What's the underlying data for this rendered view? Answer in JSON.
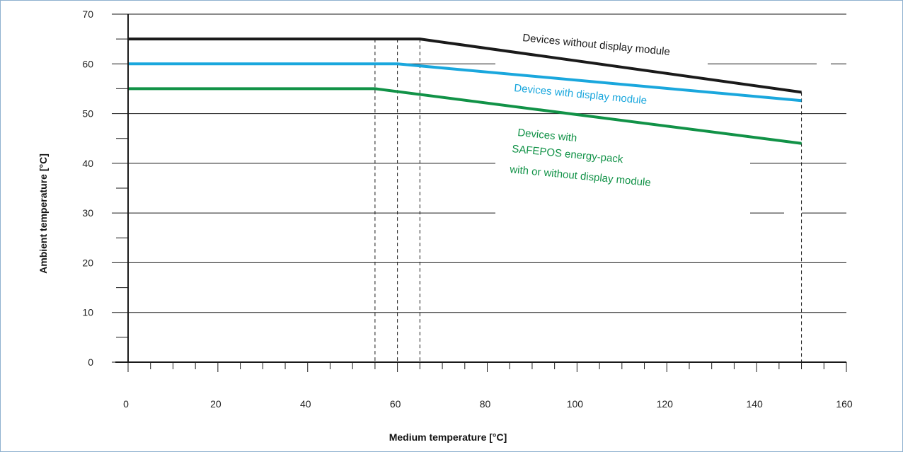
{
  "chart_data": {
    "type": "line",
    "title": "",
    "xlabel": "Medium temperature  [°C]",
    "ylabel": "Ambient  temperature   [°C]",
    "xlim": [
      0,
      160
    ],
    "ylim": [
      0,
      70
    ],
    "x_ticks": [
      0,
      20,
      40,
      60,
      80,
      100,
      120,
      140,
      160
    ],
    "y_ticks": [
      0,
      10,
      20,
      30,
      40,
      50,
      60,
      70
    ],
    "x_minor_step": 5,
    "y_minor_step": 5,
    "grid": "horizontal",
    "reference_lines_x": [
      55,
      60,
      65,
      150
    ],
    "series": [
      {
        "name": "Devices without display module",
        "label_lines": [
          "Devices without display module"
        ],
        "color": "#1a1a1a",
        "x": [
          0,
          65,
          150
        ],
        "y": [
          65,
          65,
          54.3
        ]
      },
      {
        "name": "Devices with display module",
        "label_lines": [
          "Devices with display module"
        ],
        "color": "#1aa7dd",
        "x": [
          0,
          60,
          150
        ],
        "y": [
          60,
          60,
          52.6
        ]
      },
      {
        "name": "Devices with SAFEPOS energy-pack with or without display module",
        "label_lines": [
          "Devices with",
          "SAFEPOS  energy-pack",
          "with or without display module"
        ],
        "color": "#119247",
        "x": [
          0,
          55,
          150
        ],
        "y": [
          55,
          55,
          44
        ]
      }
    ]
  }
}
